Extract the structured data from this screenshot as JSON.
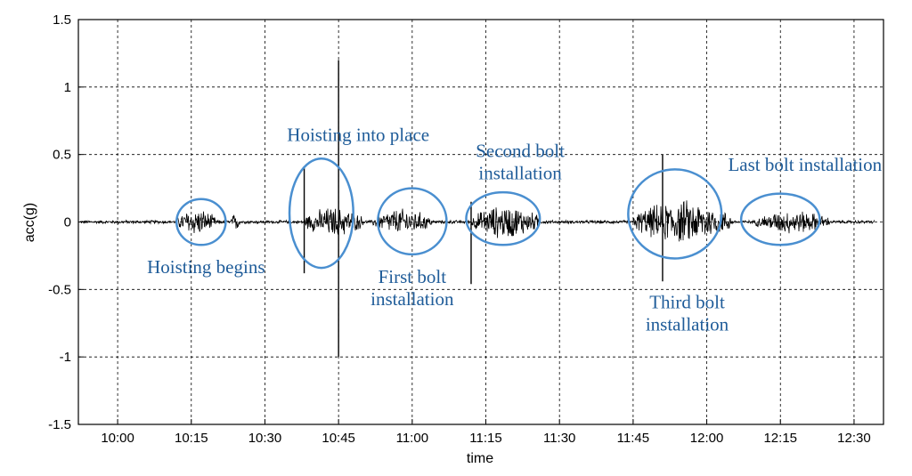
{
  "chart_data": {
    "type": "line",
    "title": "",
    "xlabel": "time",
    "ylabel": "acc(g)",
    "xlim": [
      "09:52",
      "12:36"
    ],
    "ylim": [
      -1.5,
      1.5
    ],
    "grid": true,
    "x_ticks": [
      "10:00",
      "10:15",
      "10:30",
      "10:45",
      "11:00",
      "11:15",
      "11:30",
      "11:45",
      "12:00",
      "12:15",
      "12:30"
    ],
    "y_ticks": [
      -1.5,
      -1,
      -0.5,
      0,
      0.5,
      1,
      1.5
    ],
    "y_tick_labels": [
      "-1.5",
      "-1",
      "-0.5",
      "0",
      "0.5",
      "1",
      "1.5"
    ],
    "series": [
      {
        "color": "#000000",
        "baseline_amplitude": 0.01,
        "segments": [
          {
            "start": "10:12",
            "end": "10:20",
            "amplitude": 0.08
          },
          {
            "start": "10:23",
            "end": "10:25",
            "amplitude": 0.05
          },
          {
            "start": "10:38",
            "end": "10:50",
            "amplitude": 0.09
          },
          {
            "start": "10:52",
            "end": "11:04",
            "amplitude": 0.08
          },
          {
            "start": "11:12",
            "end": "11:26",
            "amplitude": 0.1
          },
          {
            "start": "11:45",
            "end": "12:05",
            "amplitude": 0.13
          },
          {
            "start": "12:10",
            "end": "12:25",
            "amplitude": 0.07
          }
        ],
        "spikes": [
          {
            "time": "10:38",
            "min": -0.38,
            "max": 0.4
          },
          {
            "time": "10:45",
            "min": -1.0,
            "max": 1.2
          },
          {
            "time": "11:12",
            "min": -0.46,
            "max": 0.15
          },
          {
            "time": "11:51",
            "min": -0.44,
            "max": 0.5
          }
        ]
      }
    ],
    "annotations": [
      {
        "lines": [
          "Hoisting begins"
        ],
        "start": "10:12",
        "end": "10:22",
        "ymin": -0.17,
        "ymax": 0.17,
        "label_time": "10:18",
        "label_y": -0.38
      },
      {
        "lines": [
          "Hoisting into place"
        ],
        "start": "10:35",
        "end": "10:48",
        "ymin": -0.34,
        "ymax": 0.47,
        "label_time": "10:49",
        "label_y": 0.6
      },
      {
        "lines": [
          "First bolt",
          "installation"
        ],
        "start": "10:53",
        "end": "11:07",
        "ymin": -0.24,
        "ymax": 0.25,
        "label_time": "11:00",
        "label_y": -0.45
      },
      {
        "lines": [
          "Second bolt",
          "installation"
        ],
        "start": "11:11",
        "end": "11:26",
        "ymin": -0.17,
        "ymax": 0.22,
        "label_time": "11:22",
        "label_y": 0.48
      },
      {
        "lines": [
          "Third bolt",
          "installation"
        ],
        "start": "11:44",
        "end": "12:03",
        "ymin": -0.27,
        "ymax": 0.39,
        "label_time": "11:56",
        "label_y": -0.64
      },
      {
        "lines": [
          "Last bolt installation"
        ],
        "start": "12:07",
        "end": "12:23",
        "ymin": -0.17,
        "ymax": 0.21,
        "label_time": "12:20",
        "label_y": 0.38
      }
    ],
    "annotation_color": "#4a8fd0",
    "annotation_text_color": "#1f5c99"
  }
}
